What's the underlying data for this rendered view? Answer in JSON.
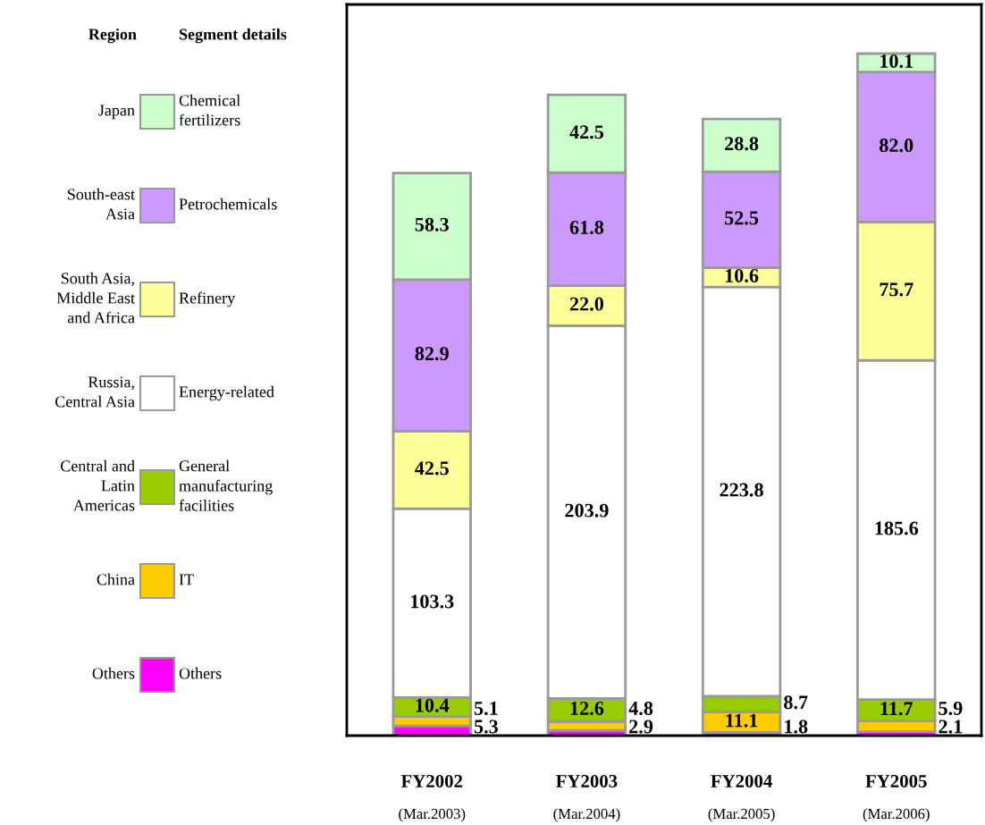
{
  "chart_data": {
    "type": "bar",
    "stacked": true,
    "tick_labels": "x",
    "grid": false,
    "legend": "left",
    "categories": [
      "FY2002\n(Mar.2003)",
      "FY2003\n(Mar.2004)",
      "FY2004\n(Mar.2005)",
      "FY2005\n(Mar.2006)"
    ],
    "ylim": [
      0,
      400
    ],
    "legend_title": "Segment details",
    "annotations": [
      "Region",
      "Japan",
      "South-east\nAsia",
      "South Asia,\nMiddle East\nand Africa",
      "Russia,\nCentral Asia",
      "Central and\nLatin\nAmericas",
      "China",
      "Others"
    ],
    "series": [
      {
        "name": "Others",
        "color": "#ff00ff",
        "values": [
          5.3,
          2.9,
          1.8,
          2.1
        ],
        "value_labels": [
          "5.3",
          "2.9",
          "1.8",
          "2.1"
        ]
      },
      {
        "name": "IT",
        "color": "#ffcc00",
        "values": [
          5.1,
          4.8,
          11.1,
          5.9
        ],
        "value_labels": [
          "5.1",
          "4.8",
          "11.1",
          "5.9"
        ]
      },
      {
        "name": "General\nmanufacturing\nfacilities",
        "color": "#99cc00",
        "values": [
          10.4,
          12.6,
          8.7,
          11.7
        ],
        "value_labels": [
          "10.4",
          "12.6",
          "8.7",
          "11.7"
        ]
      },
      {
        "name": "Energy-related",
        "color": "#ffffff",
        "values": [
          103.3,
          203.9,
          223.8,
          185.6
        ],
        "value_labels": [
          "103.3",
          "203.9",
          "223.8",
          "185.6"
        ]
      },
      {
        "name": "Refinery",
        "color": "#ffff99",
        "values": [
          42.5,
          22.0,
          10.6,
          75.7
        ],
        "value_labels": [
          "42.5",
          "22.0",
          "10.6",
          "75.7"
        ]
      },
      {
        "name": "Petrochemicals",
        "color": "#cc99ff",
        "values": [
          82.9,
          61.8,
          52.5,
          82.0
        ],
        "value_labels": [
          "82.9",
          "61.8",
          "52.5",
          "82.0"
        ]
      },
      {
        "name": "Chemical\nfertilizers",
        "color": "#ccffcc",
        "values": [
          58.3,
          42.5,
          28.8,
          10.1
        ],
        "value_labels": [
          "58.3",
          "42.5",
          "28.8",
          "10.1"
        ]
      }
    ]
  }
}
